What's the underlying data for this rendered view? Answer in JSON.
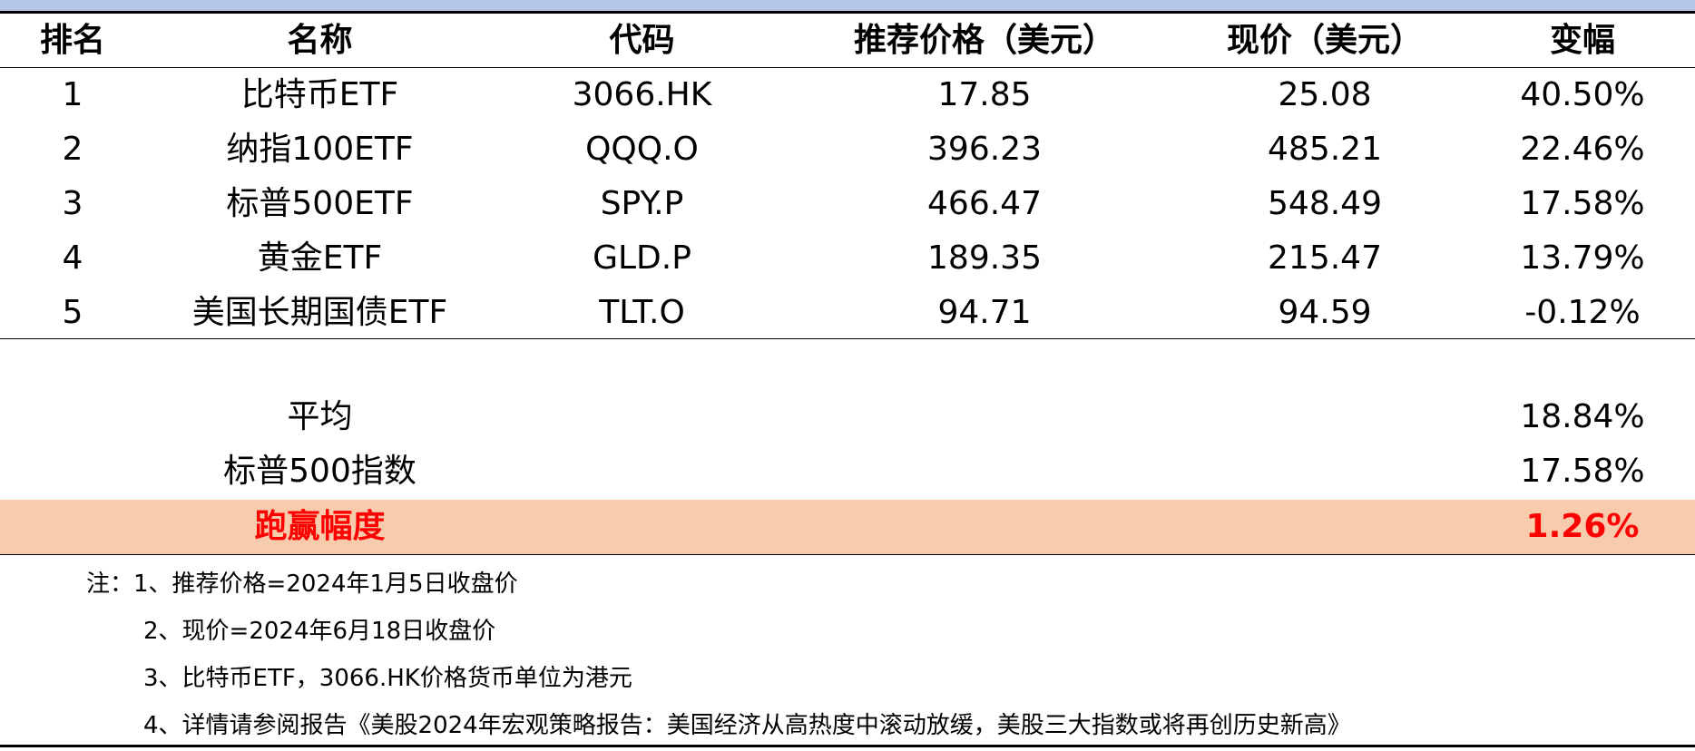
{
  "table": {
    "headers": {
      "rank": "排名",
      "name": "名称",
      "code": "代码",
      "recommended_price": "推荐价格（美元）",
      "current_price": "现价（美元）",
      "change": "变幅"
    },
    "rows": [
      {
        "rank": "1",
        "name": "比特币ETF",
        "code": "3066.HK",
        "recommended_price": "17.85",
        "current_price": "25.08",
        "change": "40.50%"
      },
      {
        "rank": "2",
        "name": "纳指100ETF",
        "code": "QQQ.O",
        "recommended_price": "396.23",
        "current_price": "485.21",
        "change": "22.46%"
      },
      {
        "rank": "3",
        "name": "标普500ETF",
        "code": "SPY.P",
        "recommended_price": "466.47",
        "current_price": "548.49",
        "change": "17.58%"
      },
      {
        "rank": "4",
        "name": "黄金ETF",
        "code": "GLD.P",
        "recommended_price": "189.35",
        "current_price": "215.47",
        "change": "13.79%"
      },
      {
        "rank": "5",
        "name": "美国长期国债ETF",
        "code": "TLT.O",
        "recommended_price": "94.71",
        "current_price": "94.59",
        "change": "-0.12%"
      }
    ],
    "summary": [
      {
        "label": "平均",
        "value": "18.84%"
      },
      {
        "label": "标普500指数",
        "value": "17.58%"
      }
    ],
    "highlight": {
      "label": "跑赢幅度",
      "value": "1.26%"
    }
  },
  "notes": [
    "注：1、推荐价格=2024年1月5日收盘价",
    "2、现价=2024年6月18日收盘价",
    "3、比特币ETF，3066.HK价格货币单位为港元",
    "4、详情请参阅报告《美股2024年宏观策略报告：美国经济从高热度中滚动放缓，美股三大指数或将再创历史新高》"
  ],
  "colors": {
    "top_band": "#b4c7e7",
    "highlight_bg": "#f8cbad",
    "highlight_text": "#ff0000"
  }
}
